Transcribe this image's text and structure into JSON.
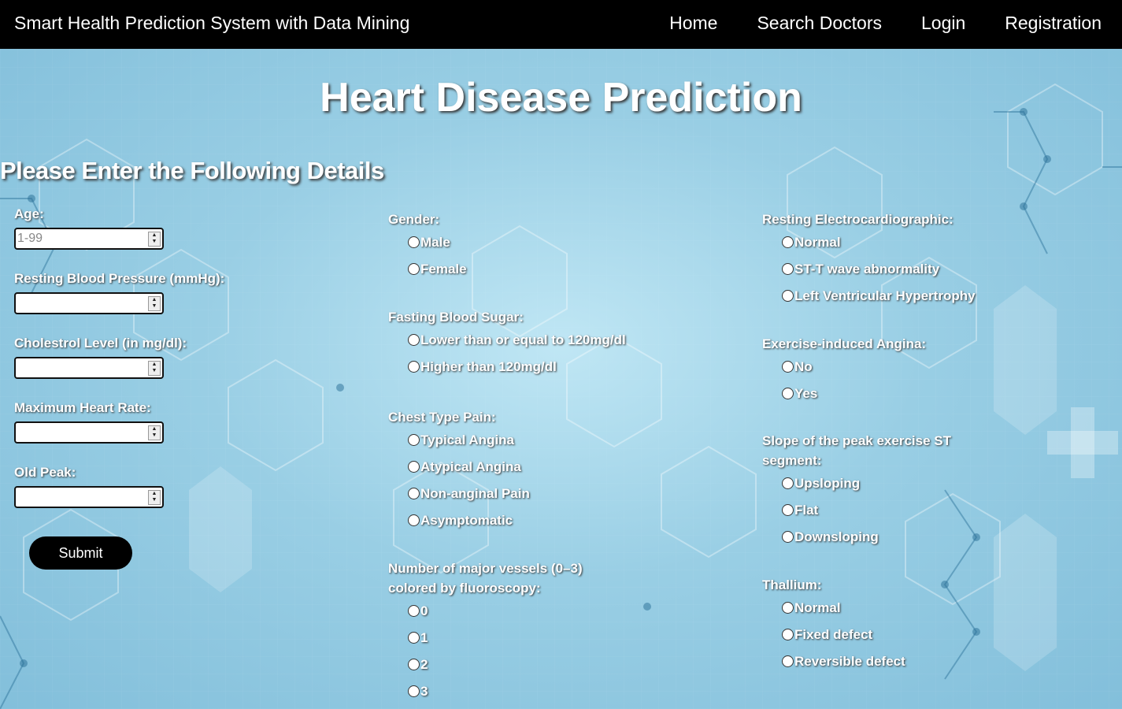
{
  "nav": {
    "brand": "Smart Health Prediction System with Data Mining",
    "links": [
      "Home",
      "Search Doctors",
      "Login",
      "Registration"
    ]
  },
  "page": {
    "title": "Heart Disease Prediction",
    "subtitle": "Please Enter the Following Details"
  },
  "numeric_fields": [
    {
      "label": "Age:",
      "placeholder": "1-99"
    },
    {
      "label": "Resting Blood Pressure (mmHg):",
      "placeholder": ""
    },
    {
      "label": "Cholestrol Level (in mg/dl):",
      "placeholder": ""
    },
    {
      "label": "Maximum Heart Rate:",
      "placeholder": ""
    },
    {
      "label": "Old Peak:",
      "placeholder": ""
    }
  ],
  "submit_label": "Submit",
  "middle_groups": [
    {
      "label": "Gender:",
      "options": [
        "Male",
        "Female"
      ]
    },
    {
      "label": "Fasting Blood Sugar:",
      "options": [
        "Lower than or equal to 120mg/dl",
        "Higher than 120mg/dl"
      ]
    },
    {
      "label": "Chest Type Pain:",
      "options": [
        "Typical Angina",
        "Atypical Angina",
        "Non-anginal Pain",
        "Asymptomatic"
      ]
    },
    {
      "label": "Number of major vessels (0–3) colored by fluoroscopy:",
      "options": [
        "0",
        "1",
        "2",
        "3"
      ]
    }
  ],
  "right_groups": [
    {
      "label": "Resting Electrocardiographic:",
      "options": [
        "Normal",
        "ST-T wave abnormality",
        "Left Ventricular Hypertrophy"
      ]
    },
    {
      "label": "Exercise-induced Angina:",
      "options": [
        "No",
        "Yes"
      ]
    },
    {
      "label": "Slope of the peak exercise ST segment:",
      "options": [
        "Upsloping",
        "Flat",
        "Downsloping"
      ]
    },
    {
      "label": "Thallium:",
      "options": [
        "Normal",
        "Fixed defect",
        "Reversible defect"
      ]
    }
  ],
  "colors": {
    "navbar": "#000000",
    "background": "#9ccfe6",
    "text": "#ffffff",
    "button": "#000000"
  }
}
